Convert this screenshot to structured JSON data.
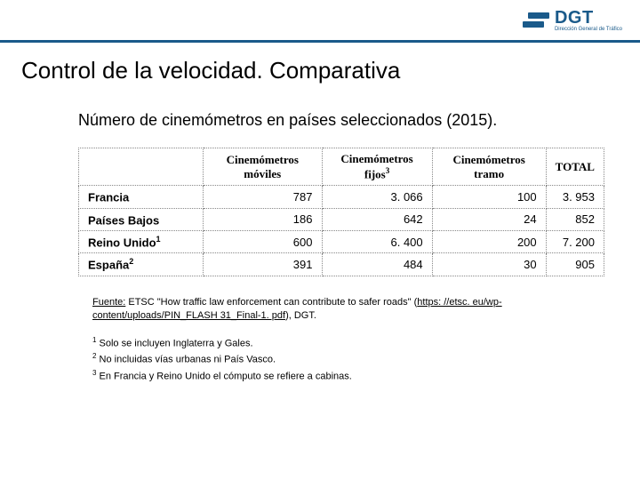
{
  "logo": {
    "main": "DGT",
    "sub": "Dirección General de Tráfico"
  },
  "title": "Control de la velocidad. Comparativa",
  "subtitle": "Número de cinemómetros en países seleccionados (2015).",
  "table": {
    "headers": {
      "empty": "",
      "col1": "Cinemómetros móviles",
      "col2_a": "Cinemómetros fijos",
      "col2_sup": "3",
      "col3": "Cinemómetros tramo",
      "col4": "TOTAL"
    },
    "rows": [
      {
        "country": "Francia",
        "sup": "",
        "moviles": "787",
        "fijos": "3. 066",
        "tramo": "100",
        "total": "3. 953"
      },
      {
        "country": "Países Bajos",
        "sup": "",
        "moviles": "186",
        "fijos": "642",
        "tramo": "24",
        "total": "852"
      },
      {
        "country": "Reino Unido",
        "sup": "1",
        "moviles": "600",
        "fijos": "6. 400",
        "tramo": "200",
        "total": "7. 200"
      },
      {
        "country": "España",
        "sup": "2",
        "moviles": "391",
        "fijos": "484",
        "tramo": "30",
        "total": "905"
      }
    ]
  },
  "source": {
    "label": "Fuente:",
    "text_a": " ETSC \"How traffic law enforcement can contribute to safer roads\" (",
    "link": "https: //etsc. eu/wp-content/uploads/PIN_FLASH 31_Final-1. pdf",
    "text_b": "), DGT."
  },
  "footnotes": {
    "f1_num": "1",
    "f1": " Solo se incluyen Inglaterra y Gales.",
    "f2_num": "2",
    "f2": " No incluidas vías urbanas ni País Vasco.",
    "f3_num": "3",
    "f3": " En Francia y Reino Unido el cómputo se refiere a cabinas."
  },
  "colors": {
    "brand": "#1a5a8a",
    "text": "#000000",
    "border": "#888888",
    "background": "#ffffff"
  }
}
